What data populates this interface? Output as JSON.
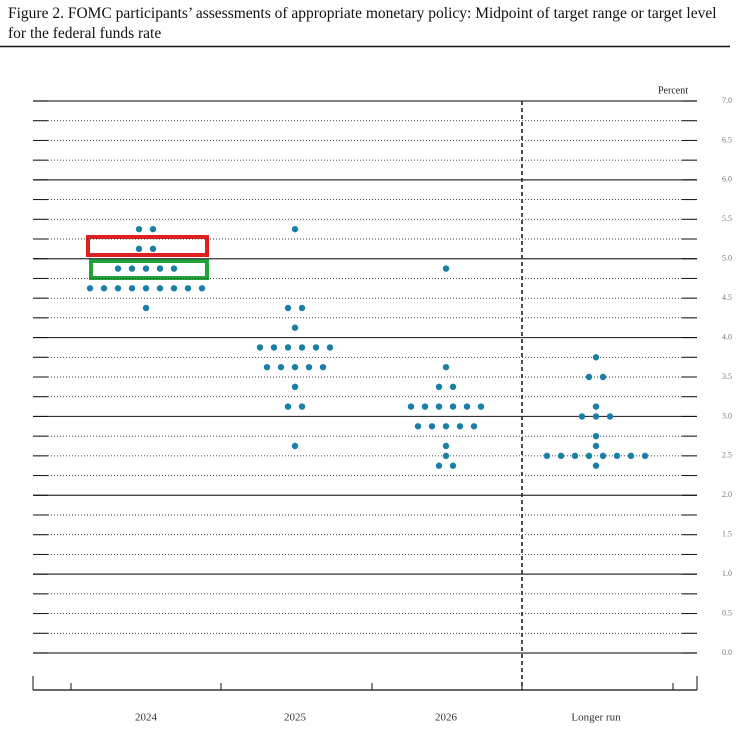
{
  "chart_data": {
    "type": "dot_plot",
    "title": "Figure 2.  FOMC participants’ assessments of appropriate monetary policy: Midpoint of target range or target level for the federal funds rate",
    "y_label": "Percent",
    "categories": [
      "2024",
      "2025",
      "2026",
      "Longer run"
    ],
    "values": [
      [
        5.375,
        5.375,
        5.125,
        5.125,
        4.875,
        4.875,
        4.875,
        4.875,
        4.875,
        4.625,
        4.625,
        4.625,
        4.625,
        4.625,
        4.625,
        4.625,
        4.625,
        4.625,
        4.375
      ],
      [
        5.375,
        4.375,
        4.375,
        4.125,
        3.875,
        3.875,
        3.875,
        3.875,
        3.875,
        3.875,
        3.625,
        3.625,
        3.625,
        3.625,
        3.625,
        3.375,
        3.125,
        3.125,
        2.625
      ],
      [
        4.875,
        3.625,
        3.375,
        3.375,
        3.125,
        3.125,
        3.125,
        3.125,
        3.125,
        3.125,
        2.875,
        2.875,
        2.875,
        2.875,
        2.875,
        2.625,
        2.5,
        2.375,
        2.375
      ],
      [
        3.75,
        3.5,
        3.5,
        3.125,
        3.0,
        3.0,
        3.0,
        2.75,
        2.625,
        2.5,
        2.5,
        2.5,
        2.5,
        2.5,
        2.5,
        2.5,
        2.5,
        2.375
      ]
    ],
    "color": "#1a7fa6",
    "ylim": [
      0,
      7
    ],
    "yticks": [
      {
        "value": 0,
        "label": "0.0"
      },
      {
        "value": 0.5,
        "label": "0.5"
      },
      {
        "value": 1,
        "label": "1.0"
      },
      {
        "value": 1.5,
        "label": "1.5"
      },
      {
        "value": 2,
        "label": "2.0"
      },
      {
        "value": 2.5,
        "label": "2.5"
      },
      {
        "value": 3,
        "label": "3.0"
      },
      {
        "value": 3.5,
        "label": "3.5"
      },
      {
        "value": 4,
        "label": "4.0"
      },
      {
        "value": 4.5,
        "label": "4.5"
      },
      {
        "value": 5,
        "label": "5.0"
      },
      {
        "value": 5.5,
        "label": "5.5"
      },
      {
        "value": 6,
        "label": "6.0"
      },
      {
        "value": 6.5,
        "label": "6.5"
      },
      {
        "value": 7,
        "label": "7.0"
      }
    ],
    "minor_yticks": [
      0.25,
      0.75,
      1.25,
      1.75,
      2.25,
      2.75,
      3.25,
      3.75,
      4.25,
      4.75,
      5.25,
      5.75,
      6.25,
      6.75
    ],
    "grid": true
  }
}
